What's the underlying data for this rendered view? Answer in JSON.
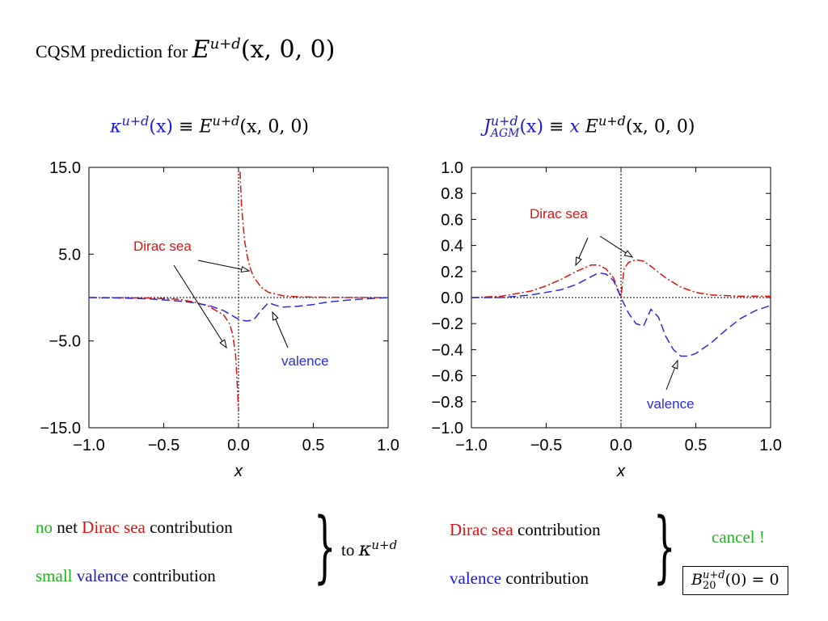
{
  "heading": {
    "text": "CQSM prediction for",
    "formula": "E",
    "formula_sup": "u+d",
    "formula_args": "(x, 0, 0)"
  },
  "chart_data": [
    {
      "type": "line",
      "title": {
        "lhs": "κ",
        "lhs_sup": "u+d",
        "lhs_args": "(x)",
        "equiv": "≡",
        "rhs": "E",
        "rhs_sup": "u+d",
        "rhs_args": "(x, 0, 0)"
      },
      "xlabel": "x",
      "ylabel": "",
      "xlim": [
        -1.0,
        1.0
      ],
      "ylim": [
        -15.0,
        15.0
      ],
      "xticks": [
        "−1.0",
        "−0.5",
        "0.0",
        "0.5",
        "1.0"
      ],
      "yticks": [
        "15.0",
        "5.0",
        "−5.0",
        "−15.0"
      ],
      "annotations": [
        "Dirac sea",
        "valence"
      ],
      "series": [
        {
          "name": "Dirac sea (x>0)",
          "color": "#e01010",
          "style": "dashdot",
          "x": [
            0.01,
            0.02,
            0.04,
            0.06,
            0.08,
            0.1,
            0.15,
            0.2,
            0.3,
            0.4,
            0.6,
            0.8,
            1.0
          ],
          "y": [
            14.5,
            10.5,
            6.6,
            4.6,
            3.3,
            2.4,
            1.2,
            0.6,
            0.2,
            0.08,
            0.03,
            0.01,
            0
          ]
        },
        {
          "name": "Dirac sea (x<0)",
          "color": "#e01010",
          "style": "dashdot",
          "x": [
            -1.0,
            -0.8,
            -0.6,
            -0.4,
            -0.3,
            -0.2,
            -0.1,
            -0.06,
            -0.04,
            -0.02,
            -0.01,
            0.0
          ],
          "y": [
            0,
            -0.01,
            -0.05,
            -0.2,
            -0.5,
            -1.0,
            -2.0,
            -3.0,
            -4.2,
            -6.5,
            -9.5,
            -13.0
          ]
        },
        {
          "name": "valence",
          "color": "#2a2ae0",
          "style": "dashed",
          "x": [
            -1.0,
            -0.8,
            -0.6,
            -0.4,
            -0.3,
            -0.2,
            -0.1,
            0.0,
            0.05,
            0.1,
            0.15,
            0.2,
            0.25,
            0.3,
            0.4,
            0.5,
            0.6,
            0.8,
            1.0
          ],
          "y": [
            0,
            -0.05,
            -0.15,
            -0.4,
            -0.6,
            -0.9,
            -1.5,
            -2.5,
            -2.7,
            -2.6,
            -1.5,
            -0.6,
            -0.9,
            -1.1,
            -1.0,
            -0.8,
            -0.5,
            -0.2,
            0
          ]
        }
      ]
    },
    {
      "type": "line",
      "title": {
        "lhs": "J",
        "lhs_sup": "u+d",
        "lhs_sub": "AGM",
        "lhs_args": "(x)",
        "equiv": "≡",
        "mid": "x",
        "rhs": "E",
        "rhs_sup": "u+d",
        "rhs_args": "(x, 0, 0)"
      },
      "xlabel": "x",
      "ylabel": "",
      "xlim": [
        -1.0,
        1.0
      ],
      "ylim": [
        -1.0,
        1.0
      ],
      "xticks": [
        "−1.0",
        "−0.5",
        "0.0",
        "0.5",
        "1.0"
      ],
      "yticks": [
        "1.0",
        "0.8",
        "0.6",
        "0.4",
        "0.2",
        "0.0",
        "−0.2",
        "−0.4",
        "−0.6",
        "−0.8",
        "−1.0"
      ],
      "annotations": [
        "Dirac sea",
        "valence"
      ],
      "series": [
        {
          "name": "Dirac sea",
          "color": "#e01010",
          "style": "dashdot",
          "x": [
            -1.0,
            -0.8,
            -0.6,
            -0.5,
            -0.4,
            -0.3,
            -0.2,
            -0.15,
            -0.1,
            -0.05,
            0.0,
            0.02,
            0.05,
            0.1,
            0.15,
            0.2,
            0.3,
            0.4,
            0.5,
            0.6,
            0.8,
            1.0
          ],
          "y": [
            0,
            0.01,
            0.05,
            0.09,
            0.14,
            0.2,
            0.25,
            0.25,
            0.22,
            0.15,
            0.0,
            0.22,
            0.27,
            0.29,
            0.28,
            0.24,
            0.15,
            0.08,
            0.04,
            0.02,
            0.01,
            0.01
          ]
        },
        {
          "name": "valence",
          "color": "#2a2ae0",
          "style": "dashed",
          "x": [
            -1.0,
            -0.8,
            -0.6,
            -0.4,
            -0.3,
            -0.2,
            -0.15,
            -0.1,
            -0.05,
            0.0,
            0.05,
            0.1,
            0.15,
            0.2,
            0.25,
            0.3,
            0.35,
            0.4,
            0.45,
            0.5,
            0.6,
            0.7,
            0.8,
            0.9,
            1.0
          ],
          "y": [
            0,
            0,
            0.02,
            0.06,
            0.1,
            0.16,
            0.19,
            0.18,
            0.13,
            0.0,
            -0.12,
            -0.2,
            -0.22,
            -0.09,
            -0.15,
            -0.3,
            -0.4,
            -0.45,
            -0.45,
            -0.43,
            -0.35,
            -0.25,
            -0.16,
            -0.1,
            -0.06
          ]
        }
      ]
    }
  ],
  "notes": {
    "left_line1": {
      "a": "no",
      "b": " net ",
      "c": "Dirac sea",
      "d": " contribution"
    },
    "left_line2": {
      "a": "small",
      "b": " ",
      "c": "valence",
      "d": " contribution"
    },
    "to_text": "to",
    "to_formula": "κ",
    "to_formula_sup": "u+d",
    "right_line1": {
      "a": "Dirac sea",
      "b": " contribution"
    },
    "right_line2": {
      "a": "valence",
      "b": " contribution"
    },
    "cancel": "cancel !",
    "box": {
      "base": "B",
      "sup": "u+d",
      "sub": "20",
      "args": "(0)",
      "eq": "= 0"
    }
  },
  "colors": {
    "dirac": "#e01010",
    "valence": "#2a2ae0",
    "green": "#22b022",
    "title_blue": "#1a1ad0"
  }
}
